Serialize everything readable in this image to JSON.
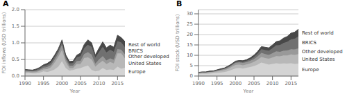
{
  "chart_data": [
    {
      "type": "area",
      "title": "A",
      "stacked": true,
      "grid": true,
      "x": [
        1990,
        1991,
        1992,
        1993,
        1994,
        1995,
        1996,
        1997,
        1998,
        1999,
        2000,
        2001,
        2002,
        2003,
        2004,
        2005,
        2006,
        2007,
        2008,
        2009,
        2010,
        2011,
        2012,
        2013,
        2014,
        2015,
        2016,
        2017
      ],
      "xlim": [
        1990,
        2017
      ],
      "xticks": [
        1990,
        1995,
        2000,
        2005,
        2010,
        2015
      ],
      "x_label": "Year",
      "y_label": "FDI inflows (USD trillions)",
      "ylim": [
        0,
        2.0
      ],
      "yticks": [
        {
          "value": 0,
          "label": "0.0"
        },
        0.5,
        {
          "value": 1,
          "label": "1.0"
        },
        1.5,
        {
          "value": 2,
          "label": "2.0"
        }
      ],
      "series": [
        {
          "name": "Europe",
          "color": "#d4d4d4",
          "values": [
            0.08,
            0.09,
            0.08,
            0.08,
            0.1,
            0.14,
            0.12,
            0.15,
            0.2,
            0.28,
            0.45,
            0.24,
            0.16,
            0.18,
            0.22,
            0.24,
            0.28,
            0.32,
            0.18,
            0.14,
            0.16,
            0.24,
            0.18,
            0.2,
            0.18,
            0.28,
            0.22,
            0.25
          ]
        },
        {
          "name": "United States",
          "color": "#b8b8b8",
          "values": [
            0.05,
            0.03,
            0.03,
            0.04,
            0.05,
            0.06,
            0.09,
            0.11,
            0.2,
            0.3,
            0.33,
            0.18,
            0.08,
            0.06,
            0.14,
            0.12,
            0.26,
            0.24,
            0.32,
            0.14,
            0.22,
            0.22,
            0.18,
            0.22,
            0.2,
            0.4,
            0.46,
            0.28
          ]
        },
        {
          "name": "Other developed",
          "color": "#999999",
          "values": [
            0.03,
            0.03,
            0.03,
            0.03,
            0.04,
            0.05,
            0.06,
            0.07,
            0.09,
            0.1,
            0.16,
            0.09,
            0.07,
            0.07,
            0.09,
            0.1,
            0.12,
            0.16,
            0.14,
            0.09,
            0.12,
            0.14,
            0.11,
            0.11,
            0.11,
            0.13,
            0.11,
            0.12
          ]
        },
        {
          "name": "BRICS",
          "color": "#707070",
          "values": [
            0.02,
            0.02,
            0.02,
            0.03,
            0.04,
            0.05,
            0.06,
            0.07,
            0.08,
            0.08,
            0.07,
            0.07,
            0.07,
            0.08,
            0.11,
            0.14,
            0.18,
            0.22,
            0.24,
            0.18,
            0.22,
            0.28,
            0.24,
            0.26,
            0.24,
            0.24,
            0.22,
            0.22
          ]
        },
        {
          "name": "Rest of world",
          "color": "#484848",
          "values": [
            0.02,
            0.02,
            0.02,
            0.03,
            0.03,
            0.04,
            0.05,
            0.06,
            0.06,
            0.06,
            0.08,
            0.06,
            0.06,
            0.06,
            0.07,
            0.09,
            0.11,
            0.15,
            0.12,
            0.08,
            0.12,
            0.15,
            0.14,
            0.14,
            0.14,
            0.18,
            0.15,
            0.17
          ]
        }
      ]
    },
    {
      "type": "area",
      "title": "B",
      "stacked": true,
      "grid": true,
      "x": [
        1990,
        1991,
        1992,
        1993,
        1994,
        1995,
        1996,
        1997,
        1998,
        1999,
        2000,
        2001,
        2002,
        2003,
        2004,
        2005,
        2006,
        2007,
        2008,
        2009,
        2010,
        2011,
        2012,
        2013,
        2014,
        2015,
        2016,
        2017
      ],
      "xlim": [
        1990,
        2017
      ],
      "xticks": [
        1990,
        1995,
        2000,
        2005,
        2010,
        2015
      ],
      "x_label": "Year",
      "y_label": "FDI stock (USD trillions)",
      "ylim": [
        0,
        32
      ],
      "yticks": [
        0,
        5,
        10,
        15,
        20,
        25,
        30
      ],
      "series": [
        {
          "name": "Europe",
          "color": "#d4d4d4",
          "values": [
            1.0,
            1.1,
            1.1,
            1.2,
            1.3,
            1.5,
            1.7,
            1.9,
            2.3,
            3.0,
            3.7,
            3.9,
            3.6,
            4.0,
            4.3,
            4.8,
            5.5,
            6.5,
            6.0,
            5.5,
            5.8,
            6.2,
            5.9,
            6.1,
            6.0,
            6.2,
            5.8,
            6.0
          ]
        },
        {
          "name": "United States",
          "color": "#b8b8b8",
          "values": [
            0.4,
            0.5,
            0.5,
            0.6,
            0.6,
            0.7,
            0.8,
            0.9,
            1.1,
            1.4,
            1.6,
            1.6,
            1.6,
            1.6,
            1.8,
            2.0,
            2.3,
            2.7,
            2.7,
            2.8,
            3.1,
            3.4,
            3.6,
            3.8,
            3.9,
            4.2,
            4.4,
            4.6
          ]
        },
        {
          "name": "Other developed",
          "color": "#999999",
          "values": [
            0.2,
            0.2,
            0.2,
            0.3,
            0.3,
            0.4,
            0.5,
            0.6,
            0.7,
            0.8,
            1.0,
            1.1,
            1.1,
            1.1,
            1.2,
            1.4,
            1.7,
            2.0,
            1.9,
            1.9,
            2.1,
            2.3,
            2.2,
            2.3,
            2.4,
            2.5,
            2.6,
            2.7
          ]
        },
        {
          "name": "BRICS",
          "color": "#707070",
          "values": [
            0.1,
            0.1,
            0.1,
            0.1,
            0.1,
            0.2,
            0.2,
            0.2,
            0.3,
            0.3,
            0.4,
            0.4,
            0.5,
            0.6,
            0.8,
            1.0,
            1.3,
            1.7,
            1.9,
            2.0,
            2.4,
            2.9,
            3.2,
            3.7,
            4.2,
            4.8,
            5.2,
            5.8
          ]
        },
        {
          "name": "Rest of world",
          "color": "#484848",
          "values": [
            0.1,
            0.1,
            0.1,
            0.2,
            0.2,
            0.2,
            0.3,
            0.3,
            0.4,
            0.4,
            0.5,
            0.5,
            0.6,
            0.6,
            0.7,
            0.9,
            1.1,
            1.3,
            1.4,
            1.4,
            1.6,
            1.8,
            2.1,
            2.4,
            2.6,
            3.0,
            3.2,
            3.5
          ]
        }
      ]
    }
  ]
}
